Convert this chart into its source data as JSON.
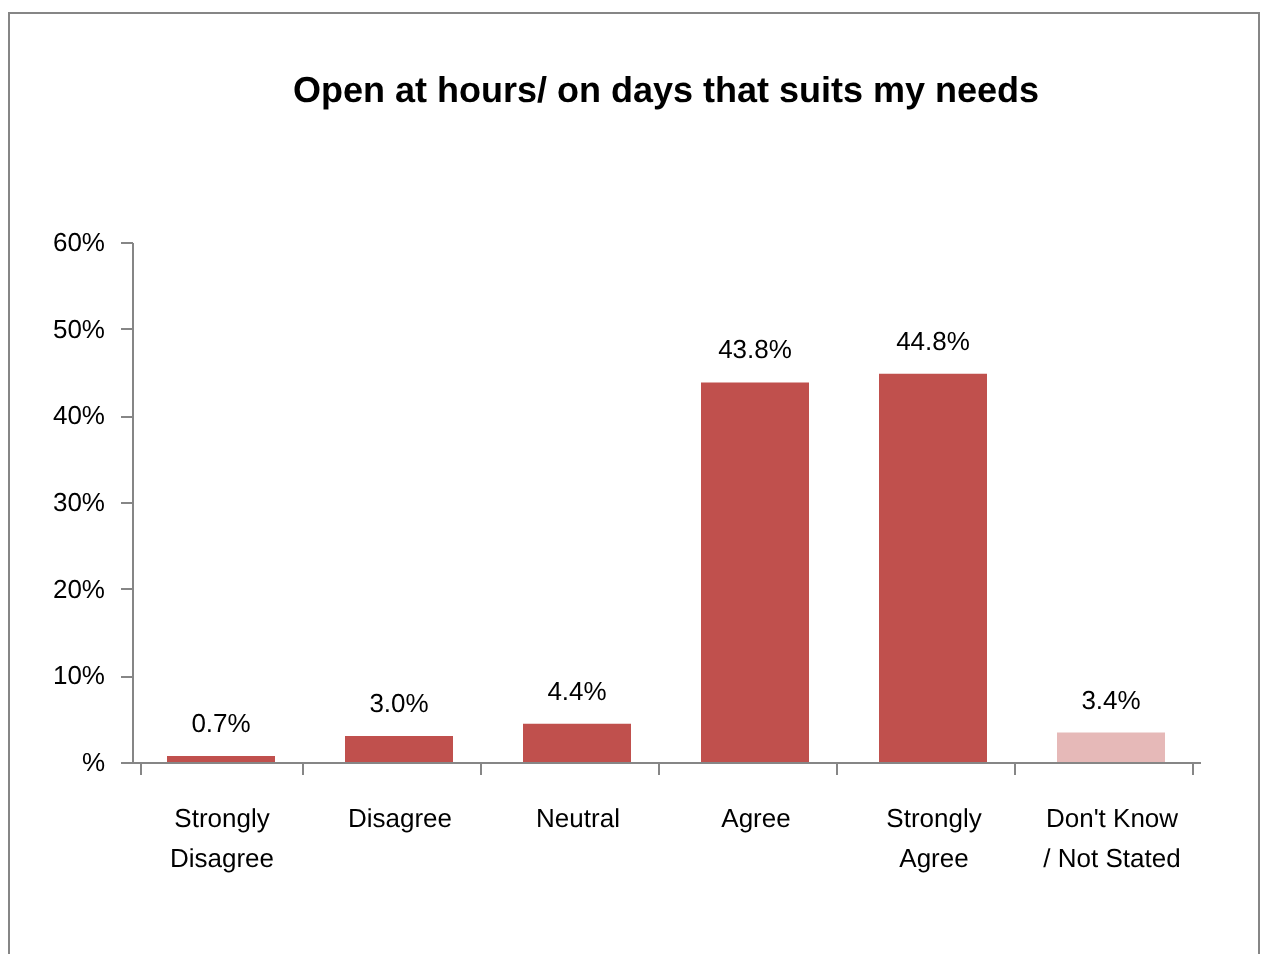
{
  "chart_data": {
    "type": "bar",
    "title": "Open at hours/ on days that suits my needs",
    "categories": [
      "Strongly Disagree",
      "Disagree",
      "Neutral",
      "Agree",
      "Strongly Agree",
      "Don't Know / Not Stated"
    ],
    "values": [
      0.7,
      3.0,
      4.4,
      43.8,
      44.8,
      3.4
    ],
    "colors": [
      "#c0504d",
      "#c0504d",
      "#c0504d",
      "#c0504d",
      "#c0504d",
      "#e6b9b8"
    ],
    "value_labels": [
      "0.7%",
      "3.0%",
      "4.4%",
      "43.8%",
      "44.8%",
      "3.4%"
    ],
    "ylim": [
      0,
      60
    ],
    "yticks": [
      {
        "value": 0,
        "label": "%"
      },
      {
        "value": 10,
        "label": "10%"
      },
      {
        "value": 20,
        "label": "20%"
      },
      {
        "value": 30,
        "label": "30%"
      },
      {
        "value": 40,
        "label": "40%"
      },
      {
        "value": 50,
        "label": "50%"
      },
      {
        "value": 60,
        "label": "60%"
      }
    ],
    "grid": false
  }
}
